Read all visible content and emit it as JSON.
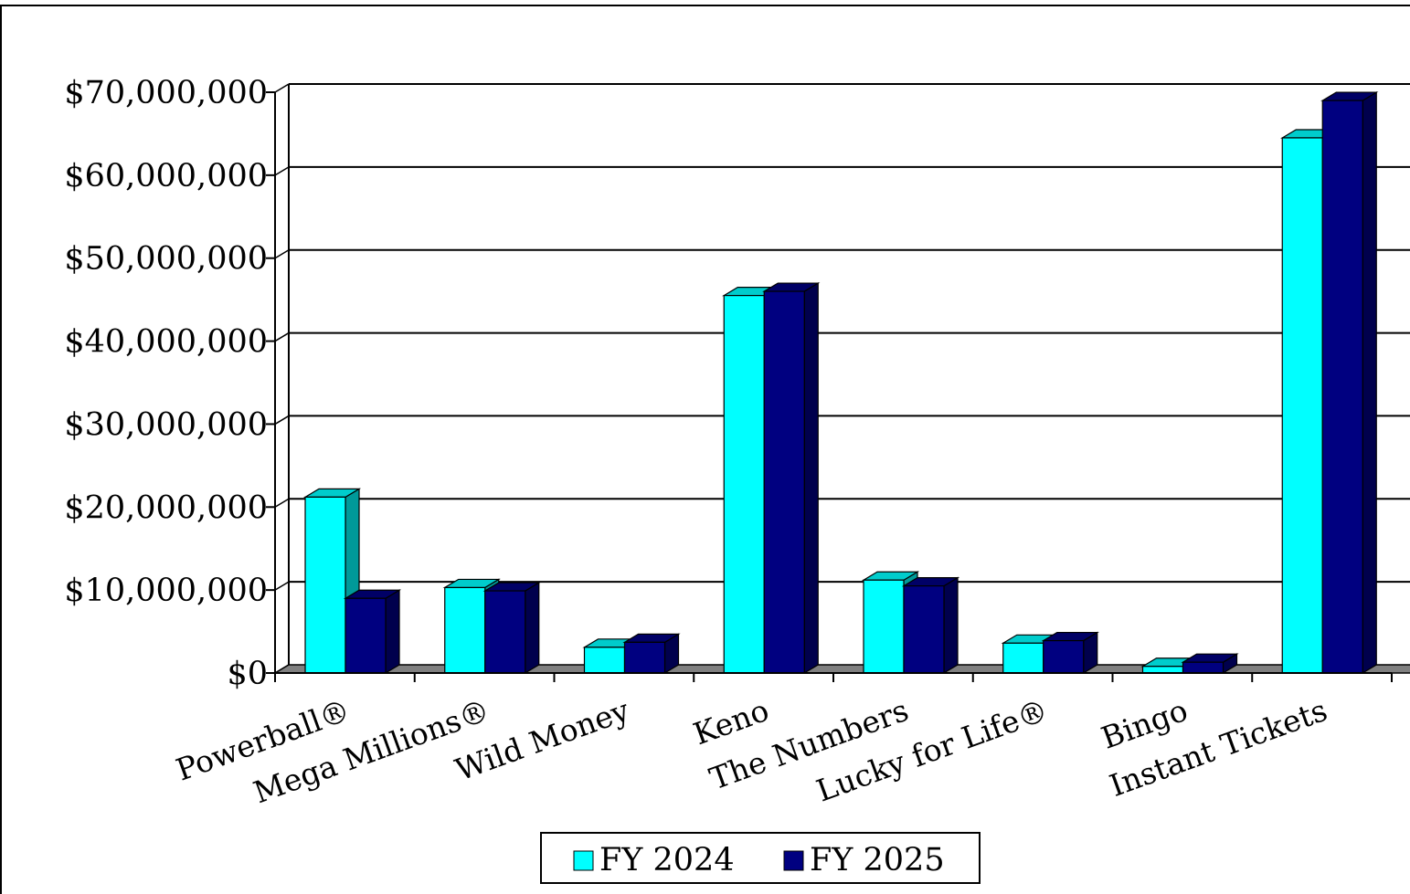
{
  "chart_data": {
    "type": "bar",
    "title": "",
    "xlabel": "",
    "ylabel": "",
    "categories": [
      "Powerball®",
      "Mega Millions®",
      "Wild Money",
      "Keno",
      "The Numbers",
      "Lucky for Life®",
      "Bingo",
      "Instant Tickets"
    ],
    "series": [
      {
        "name": "FY 2024",
        "values": [
          21200000,
          10300000,
          3100000,
          45500000,
          11200000,
          3600000,
          800000,
          64500000
        ]
      },
      {
        "name": "FY 2025",
        "values": [
          9000000,
          9900000,
          3700000,
          46000000,
          10500000,
          3900000,
          1300000,
          69000000
        ]
      }
    ],
    "ylim": [
      0,
      70000000
    ],
    "yticks": [
      0,
      10000000,
      20000000,
      30000000,
      40000000,
      50000000,
      60000000,
      70000000
    ],
    "ytick_labels": [
      "$0",
      "$10,000,000",
      "$20,000,000",
      "$30,000,000",
      "$40,000,000",
      "$50,000,000",
      "$60,000,000",
      "$70,000,000"
    ],
    "grid": true,
    "legend": "bottom-center",
    "style": "3d-clustered-column",
    "colors": {
      "FY 2024": {
        "front": "#00ffff",
        "top": "#00cccc",
        "side": "#009999"
      },
      "FY 2025": {
        "front": "#000080",
        "top": "#000066",
        "side": "#00004d"
      },
      "floor": "#808080",
      "gridline": "#000000"
    }
  }
}
